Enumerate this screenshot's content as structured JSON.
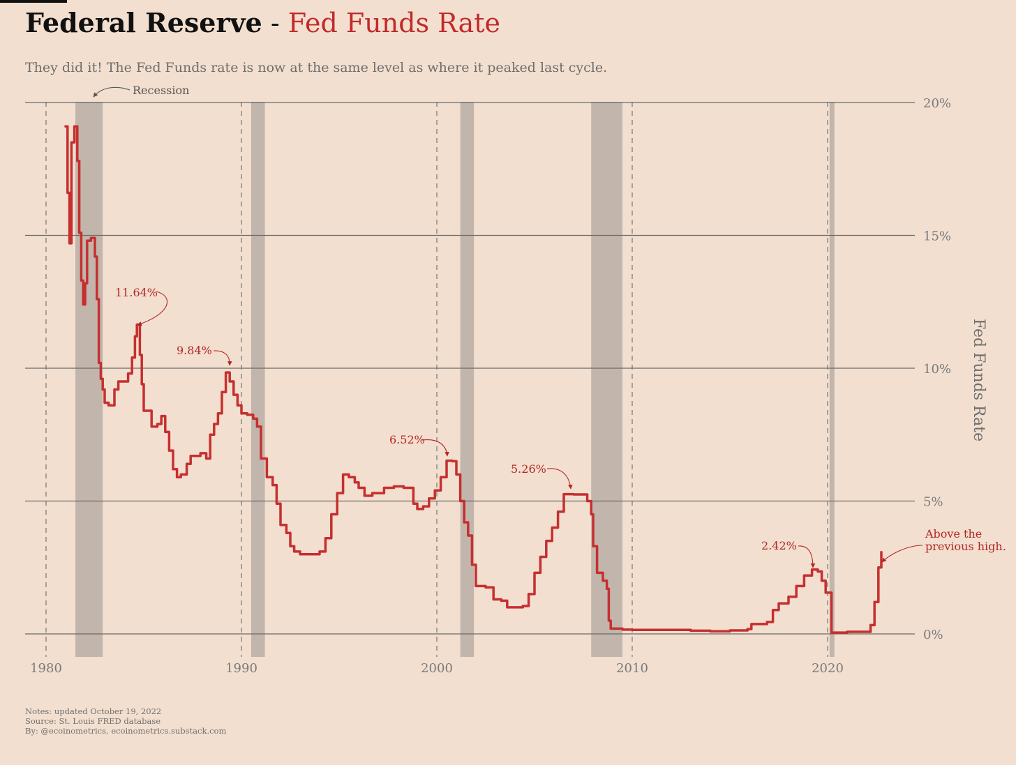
{
  "header": {
    "title_main": "Federal Reserve",
    "title_sep": " - ",
    "title_accent": "Fed Funds Rate",
    "subtitle": "They did it! The Fed Funds rate is now at the same level as where it peaked last cycle."
  },
  "notes": {
    "line1": "Notes: updated October 19, 2022",
    "line2": "Source: St. Louis FRED database",
    "line3": "By: @ecoinometrics, ecoinometrics.substack.com"
  },
  "colors": {
    "background": "#f2dfcf",
    "line": "#c62f2f",
    "recession": "#c2b6ac",
    "annotation": "#b32626",
    "grid": "#6a6a6a"
  },
  "chart_data": {
    "type": "line",
    "title": "Federal Reserve - Fed Funds Rate",
    "subtitle": "They did it! The Fed Funds rate is now at the same level as where it peaked last cycle.",
    "ylabel": "Fed Funds Rate",
    "xlabel": "",
    "xlim": [
      1979,
      2024.5
    ],
    "ylim": [
      -0.9,
      20
    ],
    "x_ticks": [
      1980,
      1990,
      2000,
      2010,
      2020
    ],
    "y_ticks": [
      0,
      5,
      10,
      15,
      20
    ],
    "y_tick_labels": [
      "0%",
      "5%",
      "10%",
      "15%",
      "20%"
    ],
    "grid": "horizontal solid, vertical dashed at x ticks",
    "recession_label": "Recession",
    "recessions": [
      [
        1981.5,
        1982.9
      ],
      [
        1990.5,
        1991.2
      ],
      [
        2001.2,
        2001.9
      ],
      [
        2007.9,
        2009.5
      ],
      [
        2020.1,
        2020.35
      ]
    ],
    "series": [
      {
        "values": [
          [
            1981.0,
            19.1
          ],
          [
            1981.1,
            16.6
          ],
          [
            1981.2,
            14.7
          ],
          [
            1981.3,
            18.5
          ],
          [
            1981.45,
            19.1
          ],
          [
            1981.6,
            17.8
          ],
          [
            1981.7,
            15.1
          ],
          [
            1981.8,
            13.3
          ],
          [
            1981.9,
            12.4
          ],
          [
            1982.0,
            13.2
          ],
          [
            1982.1,
            14.8
          ],
          [
            1982.3,
            14.9
          ],
          [
            1982.5,
            14.2
          ],
          [
            1982.6,
            12.6
          ],
          [
            1982.7,
            10.2
          ],
          [
            1982.8,
            9.6
          ],
          [
            1982.9,
            9.2
          ],
          [
            1983.0,
            8.7
          ],
          [
            1983.2,
            8.6
          ],
          [
            1983.5,
            9.2
          ],
          [
            1983.7,
            9.5
          ],
          [
            1984.0,
            9.5
          ],
          [
            1984.2,
            9.8
          ],
          [
            1984.4,
            10.4
          ],
          [
            1984.55,
            11.2
          ],
          [
            1984.65,
            11.64
          ],
          [
            1984.8,
            10.5
          ],
          [
            1984.9,
            9.4
          ],
          [
            1985.0,
            8.4
          ],
          [
            1985.2,
            8.4
          ],
          [
            1985.4,
            7.8
          ],
          [
            1985.7,
            7.9
          ],
          [
            1985.9,
            8.2
          ],
          [
            1986.1,
            7.6
          ],
          [
            1986.3,
            6.9
          ],
          [
            1986.5,
            6.2
          ],
          [
            1986.7,
            5.9
          ],
          [
            1986.9,
            6.0
          ],
          [
            1987.2,
            6.4
          ],
          [
            1987.4,
            6.7
          ],
          [
            1987.6,
            6.7
          ],
          [
            1987.9,
            6.8
          ],
          [
            1988.2,
            6.6
          ],
          [
            1988.4,
            7.5
          ],
          [
            1988.6,
            7.9
          ],
          [
            1988.8,
            8.3
          ],
          [
            1989.0,
            9.1
          ],
          [
            1989.2,
            9.84
          ],
          [
            1989.4,
            9.5
          ],
          [
            1989.6,
            9.0
          ],
          [
            1989.8,
            8.6
          ],
          [
            1990.0,
            8.3
          ],
          [
            1990.3,
            8.25
          ],
          [
            1990.6,
            8.1
          ],
          [
            1990.8,
            7.8
          ],
          [
            1991.0,
            6.6
          ],
          [
            1991.3,
            5.9
          ],
          [
            1991.6,
            5.6
          ],
          [
            1991.8,
            4.9
          ],
          [
            1992.0,
            4.1
          ],
          [
            1992.3,
            3.8
          ],
          [
            1992.5,
            3.3
          ],
          [
            1992.7,
            3.1
          ],
          [
            1993.0,
            3.0
          ],
          [
            1993.5,
            3.0
          ],
          [
            1994.0,
            3.1
          ],
          [
            1994.3,
            3.6
          ],
          [
            1994.6,
            4.5
          ],
          [
            1994.9,
            5.3
          ],
          [
            1995.2,
            6.0
          ],
          [
            1995.5,
            5.9
          ],
          [
            1995.8,
            5.7
          ],
          [
            1996.0,
            5.5
          ],
          [
            1996.3,
            5.2
          ],
          [
            1996.7,
            5.3
          ],
          [
            1997.0,
            5.3
          ],
          [
            1997.3,
            5.5
          ],
          [
            1997.8,
            5.55
          ],
          [
            1998.3,
            5.5
          ],
          [
            1998.6,
            5.5
          ],
          [
            1998.8,
            4.9
          ],
          [
            1999.0,
            4.7
          ],
          [
            1999.3,
            4.8
          ],
          [
            1999.6,
            5.1
          ],
          [
            1999.9,
            5.4
          ],
          [
            2000.2,
            5.9
          ],
          [
            2000.5,
            6.52
          ],
          [
            2000.8,
            6.5
          ],
          [
            2001.0,
            6.0
          ],
          [
            2001.2,
            5.0
          ],
          [
            2001.4,
            4.2
          ],
          [
            2001.6,
            3.7
          ],
          [
            2001.8,
            2.6
          ],
          [
            2002.0,
            1.8
          ],
          [
            2002.5,
            1.75
          ],
          [
            2002.9,
            1.3
          ],
          [
            2003.3,
            1.25
          ],
          [
            2003.6,
            1.0
          ],
          [
            2004.0,
            1.0
          ],
          [
            2004.4,
            1.05
          ],
          [
            2004.7,
            1.5
          ],
          [
            2005.0,
            2.3
          ],
          [
            2005.3,
            2.9
          ],
          [
            2005.6,
            3.5
          ],
          [
            2005.9,
            4.0
          ],
          [
            2006.2,
            4.6
          ],
          [
            2006.5,
            5.26
          ],
          [
            2007.0,
            5.25
          ],
          [
            2007.5,
            5.25
          ],
          [
            2007.7,
            5.0
          ],
          [
            2007.9,
            4.5
          ],
          [
            2008.0,
            3.3
          ],
          [
            2008.2,
            2.3
          ],
          [
            2008.5,
            2.0
          ],
          [
            2008.7,
            1.7
          ],
          [
            2008.8,
            0.5
          ],
          [
            2008.9,
            0.2
          ],
          [
            2009.5,
            0.16
          ],
          [
            2010.0,
            0.15
          ],
          [
            2011.0,
            0.15
          ],
          [
            2012.0,
            0.15
          ],
          [
            2013.0,
            0.12
          ],
          [
            2014.0,
            0.1
          ],
          [
            2015.0,
            0.13
          ],
          [
            2015.9,
            0.18
          ],
          [
            2016.1,
            0.37
          ],
          [
            2016.9,
            0.45
          ],
          [
            2017.2,
            0.9
          ],
          [
            2017.5,
            1.15
          ],
          [
            2018.0,
            1.4
          ],
          [
            2018.4,
            1.8
          ],
          [
            2018.8,
            2.2
          ],
          [
            2019.2,
            2.42
          ],
          [
            2019.5,
            2.35
          ],
          [
            2019.7,
            2.0
          ],
          [
            2019.9,
            1.55
          ],
          [
            2020.1,
            1.55
          ],
          [
            2020.2,
            0.05
          ],
          [
            2021.0,
            0.08
          ],
          [
            2022.0,
            0.08
          ],
          [
            2022.2,
            0.33
          ],
          [
            2022.4,
            1.2
          ],
          [
            2022.6,
            2.5
          ],
          [
            2022.75,
            3.08
          ]
        ]
      }
    ],
    "annotations": [
      {
        "text": "11.64%",
        "x": 1984.65,
        "y": 11.64
      },
      {
        "text": "9.84%",
        "x": 1989.2,
        "y": 9.84
      },
      {
        "text": "6.52%",
        "x": 2000.5,
        "y": 6.52
      },
      {
        "text": "5.26%",
        "x": 2006.5,
        "y": 5.26
      },
      {
        "text": "2.42%",
        "x": 2019.2,
        "y": 2.42
      },
      {
        "text": "Above the previous high.",
        "x": 2022.75,
        "y": 3.08
      }
    ]
  }
}
